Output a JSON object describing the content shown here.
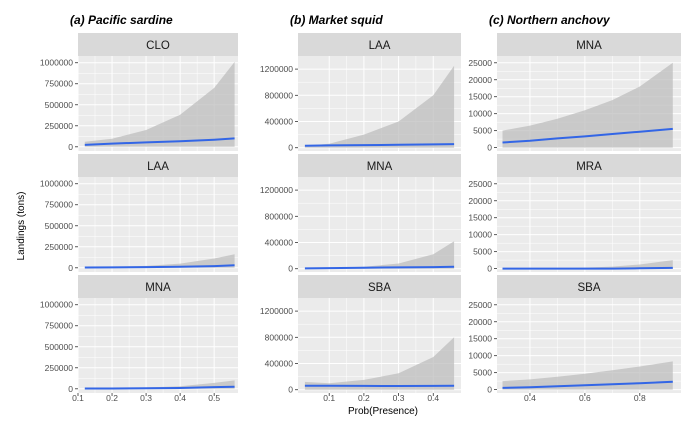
{
  "chart_data": {
    "type": "line",
    "xlabel": "Prob(Presence)",
    "ylabel": "Landings (tons)",
    "colors": {
      "line": "#3366e6",
      "ribbon": "#bebebe",
      "panel": "#ebebeb",
      "strip": "#d9d9d9",
      "grid": "#ffffff"
    },
    "groups": [
      {
        "title": "(a) Pacific sardine",
        "xlim": [
          0.1,
          0.57
        ],
        "x_ticks": [
          0.1,
          0.2,
          0.3,
          0.4,
          0.5
        ],
        "x_tick_labels": [
          "0.1",
          "0.2",
          "0.3",
          "0.4",
          "0.5"
        ],
        "ylim": [
          -50000,
          1080000
        ],
        "y_ticks": [
          0,
          250000,
          500000,
          750000,
          1000000
        ],
        "y_tick_labels": [
          "0",
          "250000",
          "500000",
          "750000",
          "1000000"
        ],
        "panels": [
          {
            "strip": "CLO",
            "x": [
              0.12,
              0.2,
              0.3,
              0.4,
              0.5,
              0.56
            ],
            "line": [
              22000,
              38000,
              52000,
              65000,
              85000,
              100000
            ],
            "upper": [
              60000,
              95000,
              200000,
              380000,
              700000,
              1010000
            ],
            "lower": [
              0,
              0,
              0,
              0,
              0,
              0
            ]
          },
          {
            "strip": "LAA",
            "x": [
              0.12,
              0.2,
              0.3,
              0.4,
              0.5,
              0.56
            ],
            "line": [
              3000,
              5000,
              8000,
              12000,
              20000,
              30000
            ],
            "upper": [
              6000,
              10000,
              22000,
              50000,
              110000,
              160000
            ],
            "lower": [
              0,
              0,
              0,
              0,
              0,
              0
            ]
          },
          {
            "strip": "MNA",
            "x": [
              0.12,
              0.2,
              0.3,
              0.4,
              0.5,
              0.56
            ],
            "line": [
              3000,
              4000,
              6000,
              10000,
              20000,
              25000
            ],
            "upper": [
              5000,
              8000,
              15000,
              30000,
              70000,
              100000
            ],
            "lower": [
              0,
              0,
              0,
              0,
              0,
              0
            ]
          }
        ]
      },
      {
        "title": "(b) Market squid",
        "xlim": [
          0.01,
          0.48
        ],
        "x_ticks": [
          0.1,
          0.2,
          0.3,
          0.4
        ],
        "x_tick_labels": [
          "0.1",
          "0.2",
          "0.3",
          "0.4"
        ],
        "ylim": [
          -50000,
          1400000
        ],
        "y_ticks": [
          0,
          400000,
          800000,
          1200000
        ],
        "y_tick_labels": [
          "0",
          "400000",
          "800000",
          "1200000"
        ],
        "panels": [
          {
            "strip": "LAA",
            "x": [
              0.03,
              0.1,
              0.2,
              0.3,
              0.4,
              0.46
            ],
            "line": [
              30000,
              35000,
              40000,
              45000,
              50000,
              55000
            ],
            "upper": [
              30000,
              60000,
              200000,
              400000,
              800000,
              1250000
            ],
            "lower": [
              0,
              0,
              0,
              0,
              0,
              0
            ]
          },
          {
            "strip": "MNA",
            "x": [
              0.03,
              0.1,
              0.2,
              0.3,
              0.4,
              0.46
            ],
            "line": [
              5000,
              10000,
              15000,
              20000,
              25000,
              30000
            ],
            "upper": [
              5000,
              15000,
              30000,
              80000,
              220000,
              420000
            ],
            "lower": [
              0,
              0,
              0,
              0,
              0,
              0
            ]
          },
          {
            "strip": "SBA",
            "x": [
              0.03,
              0.1,
              0.2,
              0.3,
              0.4,
              0.46
            ],
            "line": [
              60000,
              60000,
              58000,
              57000,
              58000,
              60000
            ],
            "upper": [
              120000,
              100000,
              150000,
              250000,
              500000,
              800000
            ],
            "lower": [
              0,
              0,
              0,
              0,
              0,
              0
            ]
          }
        ]
      },
      {
        "title": "(c) Northern anchovy",
        "xlim": [
          0.28,
          0.95
        ],
        "x_ticks": [
          0.4,
          0.6,
          0.8
        ],
        "x_tick_labels": [
          "0.4",
          "0.6",
          "0.8"
        ],
        "ylim": [
          -1000,
          27000
        ],
        "y_ticks": [
          0,
          5000,
          10000,
          15000,
          20000,
          25000
        ],
        "y_tick_labels": [
          "0",
          "5000",
          "10000",
          "15000",
          "20000",
          "25000"
        ],
        "panels": [
          {
            "strip": "MNA",
            "x": [
              0.3,
              0.4,
              0.5,
              0.6,
              0.7,
              0.8,
              0.92
            ],
            "line": [
              1500,
              2000,
              2700,
              3300,
              4000,
              4700,
              5500
            ],
            "upper": [
              5000,
              6500,
              8500,
              11000,
              14000,
              18000,
              25000
            ],
            "lower": [
              0,
              0,
              0,
              0,
              0,
              0,
              0
            ]
          },
          {
            "strip": "MRA",
            "x": [
              0.3,
              0.4,
              0.5,
              0.6,
              0.7,
              0.8,
              0.92
            ],
            "line": [
              0,
              0,
              0,
              0,
              0,
              100,
              200
            ],
            "upper": [
              0,
              0,
              100,
              300,
              600,
              1200,
              2500
            ],
            "lower": [
              0,
              0,
              0,
              0,
              0,
              0,
              0
            ]
          },
          {
            "strip": "SBA",
            "x": [
              0.3,
              0.4,
              0.5,
              0.6,
              0.7,
              0.8,
              0.92
            ],
            "line": [
              500,
              700,
              1000,
              1300,
              1600,
              1900,
              2300
            ],
            "upper": [
              2500,
              3000,
              3800,
              4700,
              5700,
              6800,
              8300
            ],
            "lower": [
              0,
              0,
              0,
              0,
              0,
              0,
              0
            ]
          }
        ]
      }
    ]
  }
}
